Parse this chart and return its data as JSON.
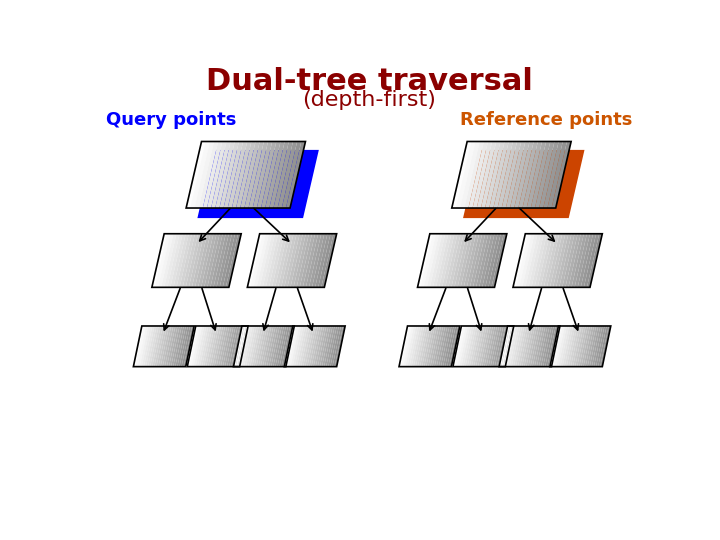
{
  "title": "Dual-tree traversal",
  "subtitle": "(depth-first)",
  "title_color": "#8B0000",
  "subtitle_color": "#8B0000",
  "query_label": "Query points",
  "query_label_color": "#0000FF",
  "ref_label": "Reference points",
  "ref_label_color": "#CC5500",
  "highlight_color_query": "#0000FF",
  "highlight_color_ref": "#CC4400",
  "bg_color": "#FFFFFF",
  "arrow_color": "#000000"
}
